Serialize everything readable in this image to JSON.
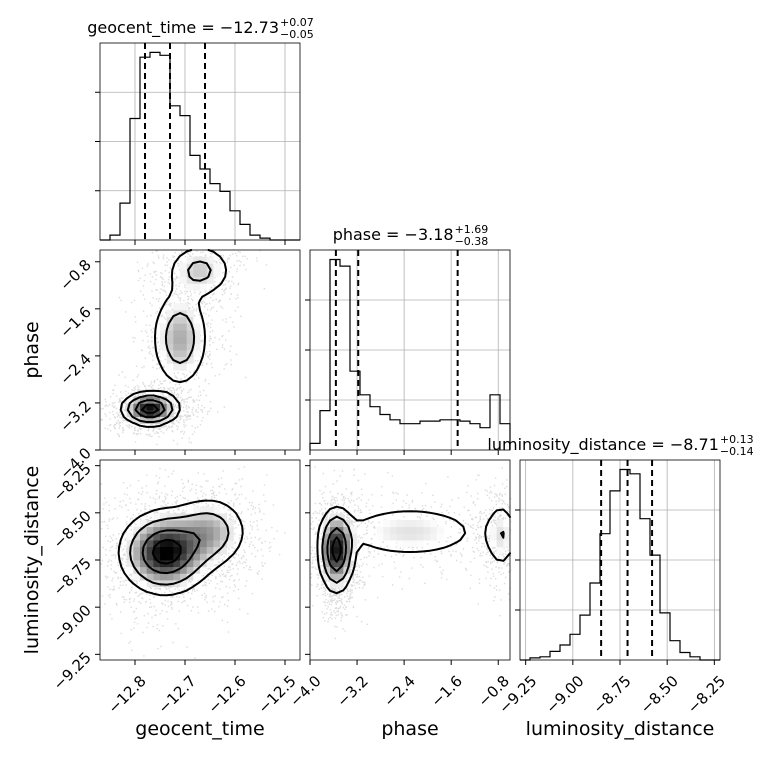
{
  "chart_data": {
    "type": "corner",
    "grid": true,
    "parameters": [
      {
        "name": "geocent_time",
        "xlabel": "geocent_time",
        "range": [
          -12.87,
          -12.47
        ],
        "ticks": [
          -12.8,
          -12.7,
          -12.6,
          -12.5
        ],
        "tick_labels": [
          "−12.8",
          "−12.7",
          "−12.6",
          "−12.5"
        ],
        "title_main": "geocent_time = −12.73",
        "title_sup": "+0.07",
        "title_sub": "−0.05",
        "quantiles": [
          -12.78,
          -12.73,
          -12.66
        ],
        "hist_bins": [
          -12.87,
          -12.85,
          -12.83,
          -12.81,
          -12.79,
          -12.77,
          -12.75,
          -12.73,
          -12.71,
          -12.69,
          -12.67,
          -12.65,
          -12.63,
          -12.61,
          -12.59,
          -12.57,
          -12.55,
          -12.53,
          -12.51,
          -12.49,
          -12.47
        ],
        "hist_counts": [
          0,
          5,
          38,
          125,
          188,
          193,
          190,
          138,
          128,
          87,
          73,
          58,
          50,
          30,
          16,
          5,
          2,
          0,
          0,
          0
        ]
      },
      {
        "name": "phase",
        "xlabel": "phase",
        "ylabel": "phase",
        "range": [
          -4.0,
          -0.6
        ],
        "ticks": [
          -4.0,
          -3.2,
          -2.4,
          -1.6,
          -0.8
        ],
        "tick_labels": [
          "−4.0",
          "−3.2",
          "−2.4",
          "−1.6",
          "−0.8"
        ],
        "title_main": "phase = −3.18",
        "title_sup": "+1.69",
        "title_sub": "−0.38",
        "quantiles": [
          -3.56,
          -3.18,
          -1.49
        ],
        "hist_bins": [
          -4.0,
          -3.83,
          -3.66,
          -3.49,
          -3.32,
          -3.15,
          -2.98,
          -2.81,
          -2.64,
          -2.47,
          -2.3,
          -2.13,
          -1.96,
          -1.79,
          -1.62,
          -1.45,
          -1.28,
          -1.11,
          -0.94,
          -0.77,
          -0.6
        ],
        "hist_counts": [
          5,
          30,
          145,
          140,
          60,
          42,
          33,
          27,
          23,
          20,
          20,
          22,
          22,
          23,
          23,
          22,
          20,
          17,
          42,
          20
        ]
      },
      {
        "name": "luminosity_distance",
        "xlabel": "luminosity_distance",
        "ylabel": "luminosity_distance",
        "range": [
          -9.28,
          -8.22
        ],
        "ticks": [
          -9.25,
          -9.0,
          -8.75,
          -8.5,
          -8.25
        ],
        "tick_labels": [
          "−9.25",
          "−9.00",
          "−8.75",
          "−8.50",
          "−8.25"
        ],
        "title_main": "luminosity_distance = −8.71",
        "title_sup": "+0.13",
        "title_sub": "−0.14",
        "quantiles": [
          -8.85,
          -8.71,
          -8.58
        ],
        "hist_bins": [
          -9.28,
          -9.227,
          -9.174,
          -9.121,
          -9.068,
          -9.015,
          -8.962,
          -8.909,
          -8.856,
          -8.803,
          -8.75,
          -8.697,
          -8.644,
          -8.591,
          -8.538,
          -8.485,
          -8.432,
          -8.379,
          -8.326,
          -8.273,
          -8.22
        ],
        "hist_counts": [
          0,
          2,
          3,
          8,
          14,
          24,
          42,
          72,
          118,
          158,
          178,
          174,
          132,
          98,
          44,
          18,
          7,
          3,
          0,
          0
        ]
      }
    ],
    "density_2d": [
      {
        "x": "geocent_time",
        "y": "phase",
        "modes": [
          {
            "x": -12.77,
            "y": -3.3,
            "sx": 0.028,
            "sy": 0.14,
            "w": 1.0
          },
          {
            "x": -12.71,
            "y": -2.1,
            "sx": 0.03,
            "sy": 0.45,
            "w": 0.45
          },
          {
            "x": -12.67,
            "y": -0.95,
            "sx": 0.035,
            "sy": 0.25,
            "w": 0.35
          }
        ]
      },
      {
        "x": "geocent_time",
        "y": "luminosity_distance",
        "modes": [
          {
            "x": -12.74,
            "y": -8.71,
            "sx": 0.045,
            "sy": 0.11,
            "w": 1.0
          },
          {
            "x": -12.65,
            "y": -8.6,
            "sx": 0.04,
            "sy": 0.1,
            "w": 0.45
          }
        ]
      },
      {
        "x": "phase",
        "y": "luminosity_distance",
        "modes": [
          {
            "x": -3.55,
            "y": -8.7,
            "sx": 0.15,
            "sy": 0.11,
            "w": 1.0
          },
          {
            "x": -2.3,
            "y": -8.6,
            "sx": 0.7,
            "sy": 0.08,
            "w": 0.3
          },
          {
            "x": -0.75,
            "y": -8.62,
            "sx": 0.15,
            "sy": 0.1,
            "w": 0.3
          }
        ]
      }
    ]
  }
}
